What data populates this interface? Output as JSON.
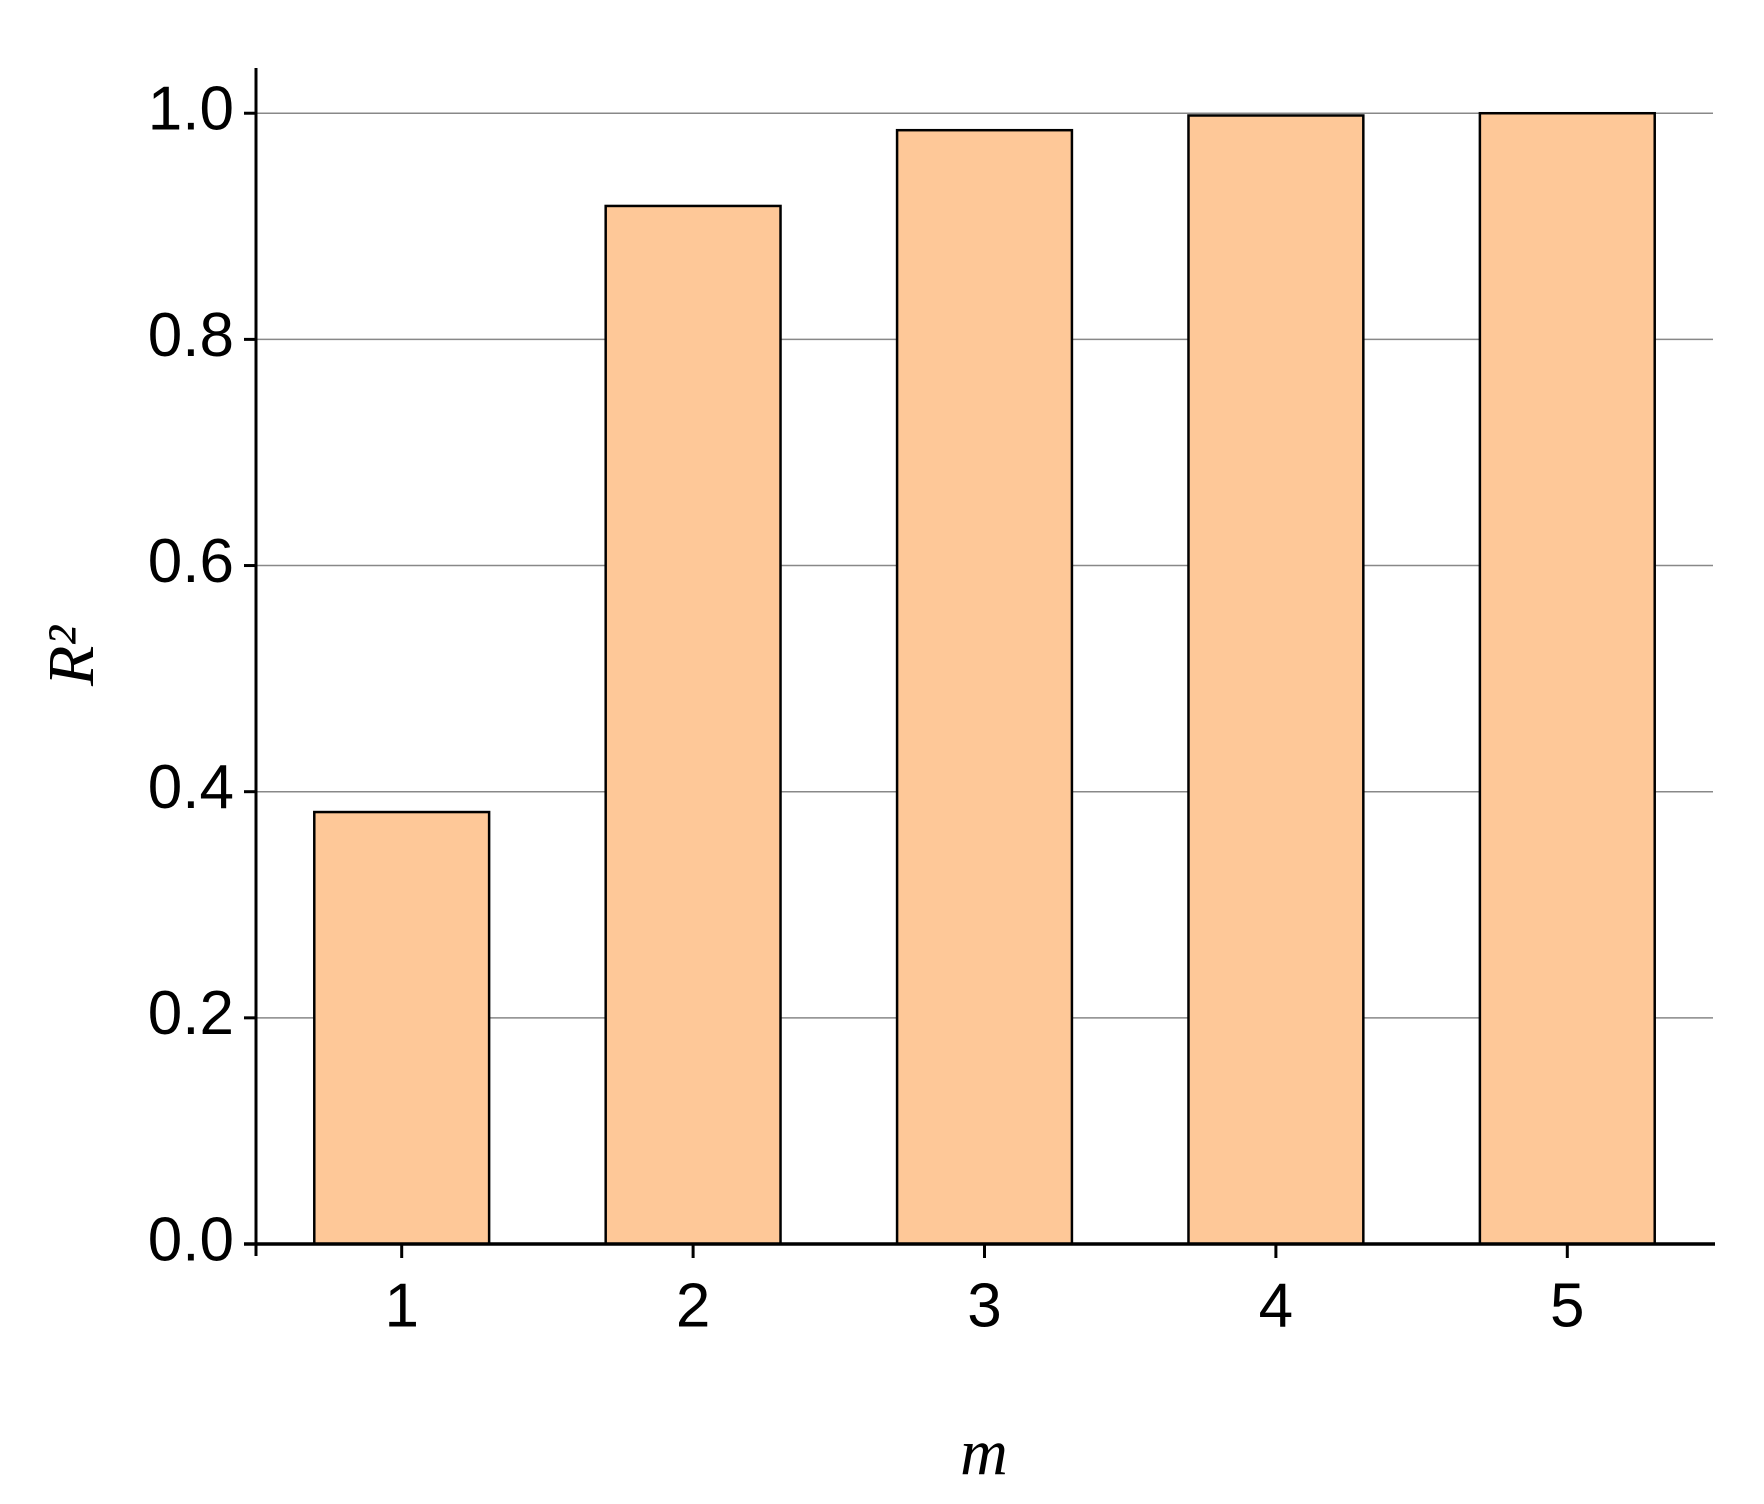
{
  "chart_data": {
    "type": "bar",
    "xlabel": "m",
    "ylabel": "R²",
    "categories": [
      "1",
      "2",
      "3",
      "4",
      "5"
    ],
    "values": [
      0.382,
      0.918,
      0.985,
      0.998,
      1.0
    ],
    "color": "#fec898",
    "ylim": [
      0,
      1.04
    ],
    "yticks": [
      {
        "value": 0,
        "label": "0.0"
      },
      0.2,
      0.4,
      0.6,
      0.8,
      {
        "value": 1,
        "label": "1.0"
      }
    ],
    "grid": true
  }
}
